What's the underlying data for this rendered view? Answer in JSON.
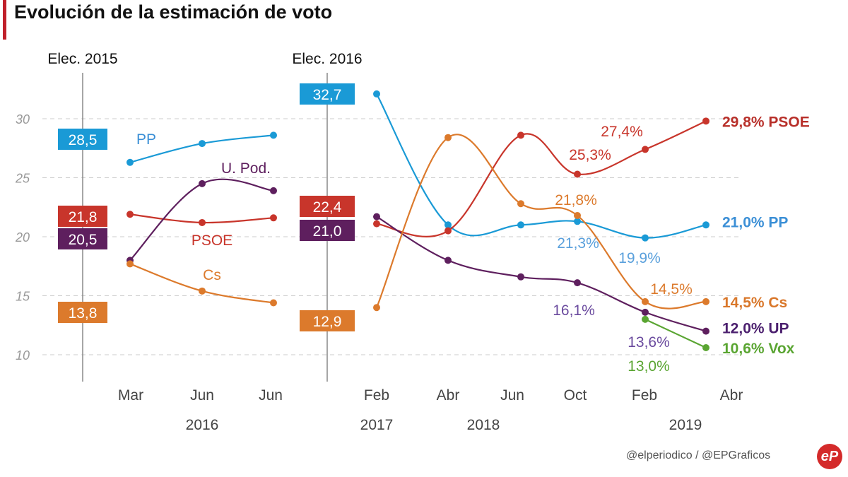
{
  "title": "Evolución de la estimación de voto",
  "footer": "@elperiodico / @EPGraficos",
  "logo_text": "eP",
  "chart_data": {
    "type": "line",
    "title": "Evolución de la estimación de voto",
    "ylim": [
      8,
      33
    ],
    "yticks": [
      10,
      15,
      20,
      25,
      30
    ],
    "grid": true,
    "elections": [
      {
        "label": "Elec. 2015",
        "values": {
          "PP": "28,5",
          "PSOE": "21,8",
          "UP": "20,5",
          "Cs": "13,8"
        }
      },
      {
        "label": "Elec. 2016",
        "values": {
          "PP": "32,7",
          "PSOE": "22,4",
          "UP": "21,0",
          "Cs": "12,9"
        }
      }
    ],
    "segments": [
      {
        "categories": [
          "Mar",
          "Jun",
          "Jun"
        ],
        "years": [
          "2016"
        ]
      },
      {
        "categories": [
          "Feb",
          "Abr",
          "Jun",
          "Oct",
          "Feb",
          "Abr"
        ],
        "years": [
          "2017",
          "2018",
          "2019"
        ]
      }
    ],
    "series": [
      {
        "key": "PP",
        "color": "#1a9ad6",
        "seg1": [
          26.3,
          27.9,
          28.6
        ],
        "seg2": [
          32.1,
          21.0,
          21.0,
          21.3,
          19.9,
          21.0
        ],
        "end_label": "21,0% PP",
        "end_color": "#3b8fd6"
      },
      {
        "key": "PSOE",
        "color": "#c8352b",
        "seg1": [
          21.9,
          21.2,
          21.6
        ],
        "seg2": [
          21.1,
          20.5,
          28.6,
          25.3,
          27.4,
          29.8
        ],
        "end_label": "29,8% PSOE",
        "end_color": "#b8302a"
      },
      {
        "key": "UP",
        "color": "#5e1f5e",
        "seg1": [
          18.0,
          24.5,
          23.9
        ],
        "seg2": [
          21.7,
          18.0,
          16.6,
          16.1,
          13.6,
          12.0
        ],
        "end_label": "12,0% UP",
        "end_color": "#4b1f6e"
      },
      {
        "key": "Cs",
        "color": "#dc7a2c",
        "seg1": [
          17.7,
          15.4,
          14.4
        ],
        "seg2": [
          14.0,
          28.4,
          22.8,
          21.8,
          14.5,
          14.5
        ],
        "end_label": "14,5% Cs",
        "end_color": "#d9772a"
      },
      {
        "key": "Vox",
        "color": "#5aa532",
        "seg1": [
          null,
          null,
          null
        ],
        "seg2": [
          null,
          null,
          null,
          null,
          13.0,
          10.6
        ],
        "end_label": "10,6% Vox",
        "end_color": "#5aa532"
      }
    ],
    "series_labels": [
      {
        "text": "PP",
        "color": "#3b8fd6"
      },
      {
        "text": "U. Pod.",
        "color": "#5e1f5e"
      },
      {
        "text": "PSOE",
        "color": "#c8352b"
      },
      {
        "text": "Cs",
        "color": "#dc7a2c"
      }
    ],
    "annotations": [
      {
        "text": "27,4%",
        "color": "#c8352b"
      },
      {
        "text": "25,3%",
        "color": "#c8352b"
      },
      {
        "text": "21,8%",
        "color": "#dc7a2c"
      },
      {
        "text": "21,3%",
        "color": "#5aa0dc"
      },
      {
        "text": "19,9%",
        "color": "#5aa0dc"
      },
      {
        "text": "14,5%",
        "color": "#dc7a2c"
      },
      {
        "text": "16,1%",
        "color": "#6a4a9e"
      },
      {
        "text": "13,6%",
        "color": "#6a4a9e"
      },
      {
        "text": "13,0%",
        "color": "#5aa532"
      }
    ]
  }
}
